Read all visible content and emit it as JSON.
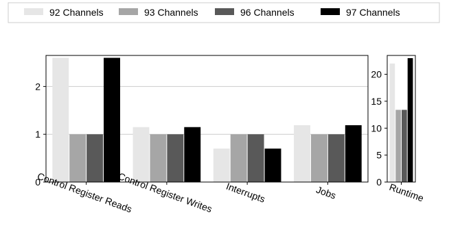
{
  "chart_data": [
    {
      "type": "bar",
      "categories": [
        "Control Register Reads",
        "Control Register Writes",
        "Interrupts",
        "Jobs"
      ],
      "series": [
        {
          "name": "92 Channels",
          "values": [
            2.6,
            1.15,
            0.7,
            1.19
          ],
          "color": "#e6e6e6"
        },
        {
          "name": "93 Channels",
          "values": [
            1.0,
            1.0,
            1.0,
            1.0
          ],
          "color": "#a6a6a6"
        },
        {
          "name": "96 Channels",
          "values": [
            1.0,
            1.0,
            1.0,
            1.0
          ],
          "color": "#595959"
        },
        {
          "name": "97 Channels",
          "values": [
            2.6,
            1.15,
            0.7,
            1.19
          ],
          "color": "#000000"
        }
      ],
      "ylim": [
        0,
        2.65
      ],
      "yticks": [
        0,
        1,
        2
      ],
      "grid": "y",
      "xlabel": "",
      "ylabel": "",
      "title": ""
    },
    {
      "type": "bar",
      "categories": [
        "Runtime"
      ],
      "series": [
        {
          "name": "92 Channels",
          "values": [
            22.0
          ],
          "color": "#e6e6e6"
        },
        {
          "name": "93 Channels",
          "values": [
            13.4
          ],
          "color": "#a6a6a6"
        },
        {
          "name": "96 Channels",
          "values": [
            13.4
          ],
          "color": "#595959"
        },
        {
          "name": "97 Channels",
          "values": [
            23.0
          ],
          "color": "#000000"
        }
      ],
      "ylim": [
        0,
        23.5
      ],
      "yticks": [
        0,
        5,
        10,
        15,
        20
      ],
      "grid": "none",
      "xlabel": "",
      "ylabel": "",
      "title": ""
    }
  ],
  "legend": {
    "placement": "top",
    "entries": [
      "92 Channels",
      "93 Channels",
      "96 Channels",
      "97 Channels"
    ]
  }
}
